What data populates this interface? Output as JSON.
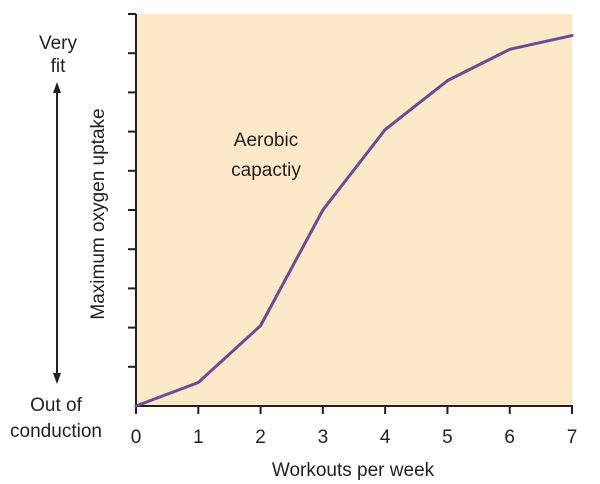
{
  "chart_data": {
    "type": "line",
    "title": "",
    "xlabel": "Workouts per week",
    "ylabel": "Maximum oxygen uptake",
    "y_top_label": [
      "Very",
      "fit"
    ],
    "y_bottom_label": [
      "Out of",
      "conduction"
    ],
    "annotation": [
      "Aerobic",
      "capactiy"
    ],
    "x": [
      0,
      1,
      2,
      3,
      4,
      5,
      6,
      7
    ],
    "x_ticks": [
      "0",
      "1",
      "2",
      "3",
      "4",
      "5",
      "6",
      "7"
    ],
    "xlim": [
      0,
      7
    ],
    "ylim": [
      0,
      10
    ],
    "y_tick_count": 10,
    "series": [
      {
        "values": [
          0,
          0.6,
          2.05,
          5.0,
          7.05,
          8.3,
          9.1,
          9.45
        ]
      }
    ],
    "grid": false,
    "colors": {
      "plot_background": "#fde8c8",
      "line": "#6b4a99",
      "axis": "#231f20",
      "text": "#231f20"
    }
  }
}
